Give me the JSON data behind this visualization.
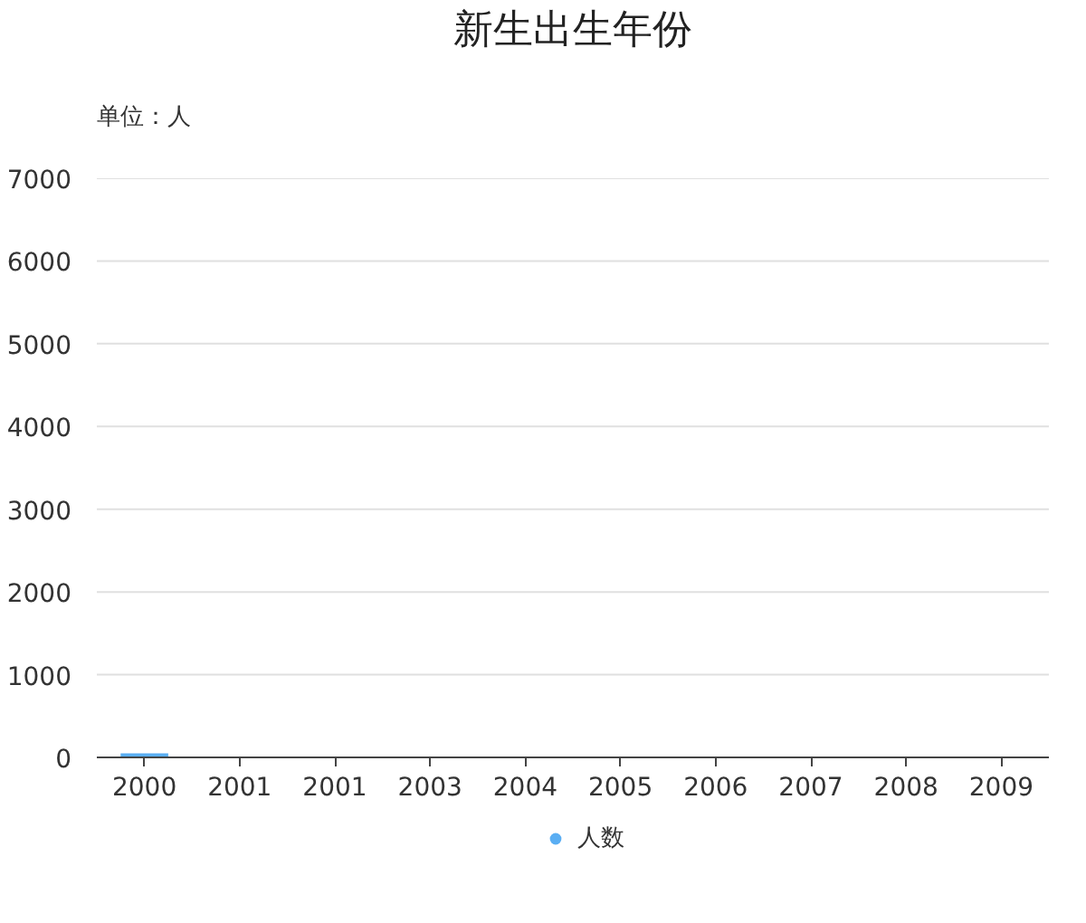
{
  "chart_data": {
    "type": "bar",
    "title": "新生出生年份",
    "ylabel": "单位：人",
    "categories": [
      "2000",
      "2001",
      "2001",
      "2003",
      "2004",
      "2005",
      "2006",
      "2007",
      "2008",
      "2009"
    ],
    "series": [
      {
        "name": "人数",
        "color": "#5aaef3",
        "values": [
          50,
          0,
          0,
          0,
          0,
          0,
          0,
          0,
          0,
          0
        ]
      }
    ],
    "ylim": [
      0,
      7000
    ],
    "yticks": [
      0,
      1000,
      2000,
      3000,
      4000,
      5000,
      6000,
      7000
    ],
    "grid": "y",
    "legend": "bottom"
  }
}
